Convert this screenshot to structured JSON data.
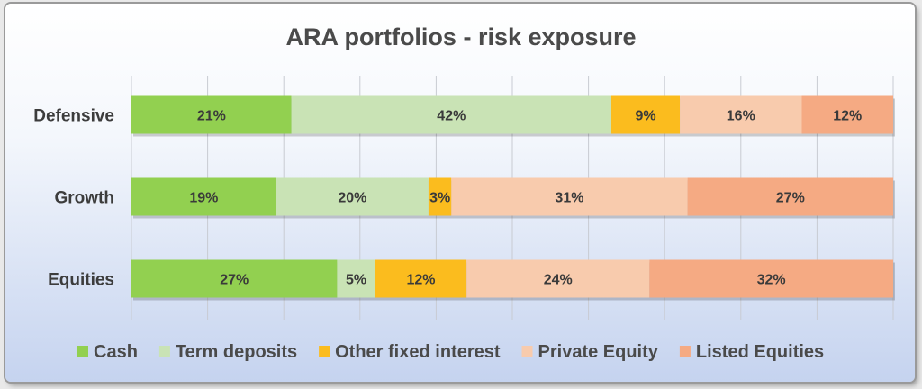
{
  "chart_data": {
    "type": "bar",
    "orientation": "horizontal",
    "stacked": "percent",
    "title": "ARA portfolios  - risk exposure",
    "categories": [
      "Defensive",
      "Growth",
      "Equities"
    ],
    "series": [
      {
        "name": "Cash",
        "color": "#92d050",
        "values": [
          21,
          19,
          27
        ]
      },
      {
        "name": "Term deposits",
        "color": "#c9e3b5",
        "values": [
          42,
          20,
          5
        ]
      },
      {
        "name": "Other fixed interest",
        "color": "#fbbc1e",
        "values": [
          9,
          3,
          12
        ]
      },
      {
        "name": "Private Equity",
        "color": "#f8cbad",
        "values": [
          16,
          31,
          24
        ]
      },
      {
        "name": "Listed Equities",
        "color": "#f5aa83",
        "values": [
          12,
          27,
          32
        ]
      }
    ],
    "data_label_suffix": "%",
    "xlim": [
      0,
      100
    ],
    "grid": true,
    "legend": "bottom"
  }
}
